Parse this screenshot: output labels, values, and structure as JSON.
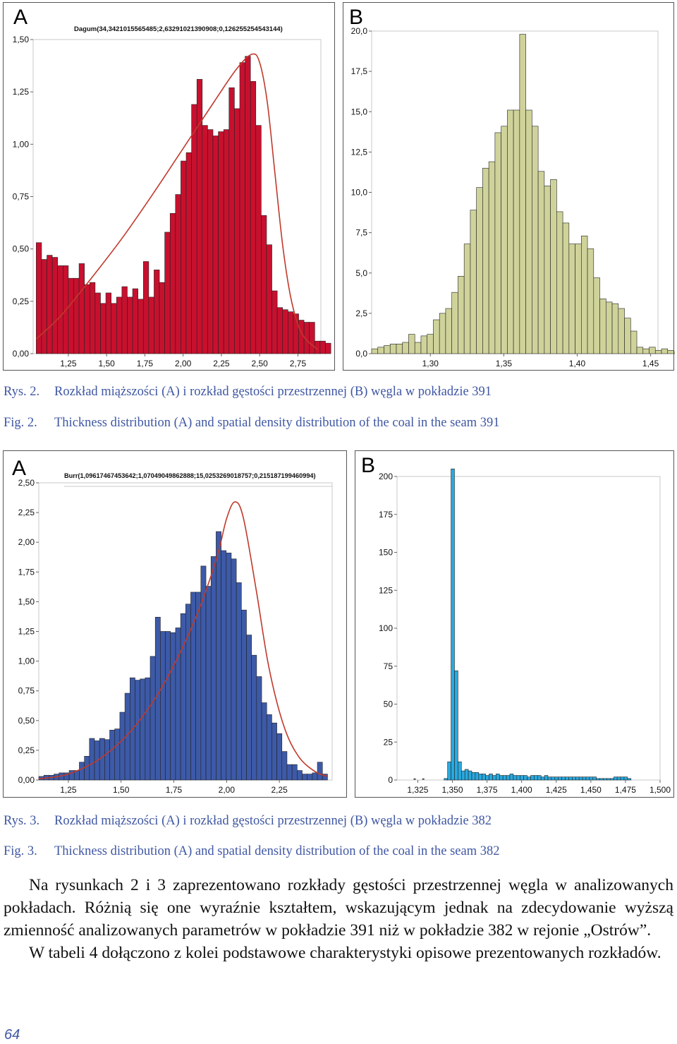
{
  "figures": [
    {
      "caption_pl_label": "Rys. 2.",
      "caption_pl_text": "Rozkład miąższości (A) i rozkład gęstości przestrzennej (B) węgla w pokładzie 391",
      "caption_en_label": "Fig. 2.",
      "caption_en_text": "Thickness distribution (A) and spatial density distribution of the coal in the seam 391"
    },
    {
      "caption_pl_label": "Rys. 3.",
      "caption_pl_text": "Rozkład miąższości (A) i rozkład gęstości przestrzennej (B) węgla w pokładzie 382",
      "caption_en_label": "Fig. 3.",
      "caption_en_text": "Thickness distribution (A) and spatial density distribution of the coal in the seam 382"
    }
  ],
  "body": {
    "paragraph1": "Na rysunkach 2 i 3 zaprezentowano rozkłady gęstości przestrzennej węgla w analizowanych pokładach. Różnią się one wyraźnie kształtem, wskazującym jednak na zdecydowanie wyższą zmienność analizowanych parametrów w pokładzie 391 niż w pokładzie 382 w rejonie „Ostrów”.",
    "paragraph2": "W tabeli 4 dołączono z kolei podstawowe charakterystyki opisowe prezentowanych rozkładów."
  },
  "page_number": "64",
  "chart_data": [
    {
      "id": "fig2A",
      "type": "bar",
      "panel_label": "A",
      "fit_label": "Dagum(34,3421015565485;2,63291021390908;0,126255254543144)",
      "bar_color": "#c8102e",
      "curve_color": "#c0392b",
      "x_range": [
        1.02,
        2.9
      ],
      "ylim": [
        0,
        1.5
      ],
      "x_ticks": [
        {
          "v": 1.25,
          "l": "1,25"
        },
        {
          "v": 1.5,
          "l": "1,50"
        },
        {
          "v": 1.75,
          "l": "1,75"
        },
        {
          "v": 2.0,
          "l": "2,00"
        },
        {
          "v": 2.25,
          "l": "2,25"
        },
        {
          "v": 2.5,
          "l": "2,50"
        },
        {
          "v": 2.75,
          "l": "2,75"
        }
      ],
      "y_ticks": [
        {
          "v": 0,
          "l": "0,00"
        },
        {
          "v": 0.25,
          "l": "0,25"
        },
        {
          "v": 0.5,
          "l": "0,50"
        },
        {
          "v": 0.75,
          "l": "0,75"
        },
        {
          "v": 1.0,
          "l": "1,00"
        },
        {
          "v": 1.25,
          "l": "1,25"
        },
        {
          "v": 1.5,
          "l": "1,50"
        }
      ],
      "bin_start": 1.04,
      "bin_width": 0.035,
      "values": [
        0.53,
        0.45,
        0.47,
        0.46,
        0.42,
        0.42,
        0.36,
        0.36,
        0.43,
        0.33,
        0.34,
        0.29,
        0.24,
        0.29,
        0.24,
        0.27,
        0.32,
        0.27,
        0.31,
        0.26,
        0.44,
        0.27,
        0.4,
        0.34,
        0.58,
        0.67,
        0.76,
        0.92,
        0.96,
        1.19,
        1.31,
        1.09,
        1.07,
        1.04,
        1.06,
        1.07,
        1.27,
        1.17,
        1.39,
        1.42,
        1.3,
        1.09,
        0.66,
        0.52,
        0.3,
        0.22,
        0.21,
        0.2,
        0.19,
        0.16,
        0.15,
        0.15,
        0.06,
        0.06,
        0.05
      ],
      "curve": [
        [
          1.04,
          0.07
        ],
        [
          1.2,
          0.18
        ],
        [
          1.4,
          0.36
        ],
        [
          1.6,
          0.55
        ],
        [
          1.8,
          0.76
        ],
        [
          2.0,
          0.98
        ],
        [
          2.2,
          1.2
        ],
        [
          2.35,
          1.36
        ],
        [
          2.45,
          1.43
        ],
        [
          2.5,
          1.39
        ],
        [
          2.55,
          1.2
        ],
        [
          2.6,
          0.86
        ],
        [
          2.65,
          0.52
        ],
        [
          2.7,
          0.28
        ],
        [
          2.75,
          0.14
        ],
        [
          2.8,
          0.07
        ],
        [
          2.88,
          0.02
        ]
      ]
    },
    {
      "id": "fig2B",
      "type": "bar",
      "panel_label": "B",
      "bar_color": "#cfd39a",
      "curve_color": "",
      "x_range": [
        1.26,
        1.455
      ],
      "ylim": [
        0,
        20
      ],
      "x_ticks": [
        {
          "v": 1.3,
          "l": "1,30"
        },
        {
          "v": 1.35,
          "l": "1,35"
        },
        {
          "v": 1.4,
          "l": "1,40"
        },
        {
          "v": 1.45,
          "l": "1,45"
        }
      ],
      "y_ticks": [
        {
          "v": 0,
          "l": "0,0"
        },
        {
          "v": 2.5,
          "l": "2,5"
        },
        {
          "v": 5.0,
          "l": "5,0"
        },
        {
          "v": 7.5,
          "l": "7,5"
        },
        {
          "v": 10.0,
          "l": "10,0"
        },
        {
          "v": 12.5,
          "l": "12,5"
        },
        {
          "v": 15.0,
          "l": "15,0"
        },
        {
          "v": 17.5,
          "l": "17,5"
        },
        {
          "v": 20.0,
          "l": "20,0"
        }
      ],
      "bin_start": 1.26,
      "bin_width": 0.0042,
      "values": [
        0.3,
        0.4,
        0.5,
        0.6,
        0.6,
        0.7,
        1.2,
        0.7,
        1.1,
        1.2,
        2.1,
        2.5,
        2.8,
        3.8,
        4.8,
        6.8,
        8.9,
        10.3,
        11.5,
        11.9,
        13.7,
        14.1,
        15.1,
        15.1,
        19.8,
        15.1,
        14.1,
        11.3,
        10.4,
        10.8,
        8.8,
        8.1,
        6.8,
        6.8,
        7.3,
        6.5,
        4.7,
        3.4,
        3.2,
        3.1,
        2.8,
        2.2,
        1.4,
        0.4,
        0.3,
        0.4,
        0.2,
        0.3,
        0.2,
        0.1,
        0.1,
        0.2,
        0.2
      ],
      "curve": []
    },
    {
      "id": "fig3A",
      "type": "bar",
      "panel_label": "A",
      "fit_label": "Burr(1,09617467453642;1,07049049862888;15,0253269018757;0,215187199460994)",
      "bar_color": "#3d5aa8",
      "curve_color": "#c0392b",
      "x_range": [
        1.11,
        2.5
      ],
      "ylim": [
        0,
        2.5
      ],
      "x_ticks": [
        {
          "v": 1.25,
          "l": "1,25"
        },
        {
          "v": 1.5,
          "l": "1,50"
        },
        {
          "v": 1.75,
          "l": "1,75"
        },
        {
          "v": 2.0,
          "l": "2,00"
        },
        {
          "v": 2.25,
          "l": "2,25"
        }
      ],
      "y_ticks": [
        {
          "v": 0,
          "l": "0,00"
        },
        {
          "v": 0.25,
          "l": "0,25"
        },
        {
          "v": 0.5,
          "l": "0,50"
        },
        {
          "v": 0.75,
          "l": "0,75"
        },
        {
          "v": 1.0,
          "l": "1,00"
        },
        {
          "v": 1.25,
          "l": "1,25"
        },
        {
          "v": 1.5,
          "l": "1,50"
        },
        {
          "v": 1.75,
          "l": "1,75"
        },
        {
          "v": 2.0,
          "l": "2,00"
        },
        {
          "v": 2.25,
          "l": "2,25"
        },
        {
          "v": 2.5,
          "l": "2,50"
        }
      ],
      "bin_start": 1.11,
      "bin_width": 0.024,
      "values": [
        0.03,
        0.04,
        0.04,
        0.05,
        0.06,
        0.06,
        0.08,
        0.08,
        0.15,
        0.2,
        0.35,
        0.33,
        0.35,
        0.34,
        0.42,
        0.43,
        0.57,
        0.73,
        0.86,
        0.84,
        0.85,
        0.86,
        1.04,
        1.37,
        1.25,
        1.25,
        1.24,
        1.28,
        1.4,
        1.48,
        1.58,
        1.58,
        1.8,
        1.63,
        1.88,
        2.09,
        1.93,
        1.91,
        1.86,
        1.66,
        1.43,
        1.22,
        1.05,
        0.87,
        0.65,
        0.55,
        0.48,
        0.39,
        0.24,
        0.13,
        0.13,
        0.08,
        0.05,
        0.05,
        0.06,
        0.15,
        0.05
      ],
      "curve": [
        [
          1.11,
          0.01
        ],
        [
          1.25,
          0.05
        ],
        [
          1.4,
          0.18
        ],
        [
          1.55,
          0.42
        ],
        [
          1.7,
          0.8
        ],
        [
          1.85,
          1.35
        ],
        [
          1.95,
          1.85
        ],
        [
          2.0,
          2.2
        ],
        [
          2.04,
          2.34
        ],
        [
          2.08,
          2.2
        ],
        [
          2.14,
          1.6
        ],
        [
          2.2,
          0.95
        ],
        [
          2.27,
          0.46
        ],
        [
          2.34,
          0.2
        ],
        [
          2.42,
          0.07
        ],
        [
          2.48,
          0.03
        ]
      ]
    },
    {
      "id": "fig3B",
      "type": "bar",
      "panel_label": "B",
      "bar_color": "#29a9df",
      "curve_color": "",
      "x_range": [
        1.31,
        1.5
      ],
      "ylim": [
        0,
        200
      ],
      "x_ticks": [
        {
          "v": 1.325,
          "l": "1,325"
        },
        {
          "v": 1.35,
          "l": "1,350"
        },
        {
          "v": 1.375,
          "l": "1,375"
        },
        {
          "v": 1.4,
          "l": "1,400"
        },
        {
          "v": 1.425,
          "l": "1,425"
        },
        {
          "v": 1.45,
          "l": "1,450"
        },
        {
          "v": 1.475,
          "l": "1,475"
        },
        {
          "v": 1.5,
          "l": "1,500"
        }
      ],
      "y_ticks": [
        {
          "v": 0,
          "l": "0"
        },
        {
          "v": 25,
          "l": "25"
        },
        {
          "v": 50,
          "l": "50"
        },
        {
          "v": 75,
          "l": "75"
        },
        {
          "v": 100,
          "l": "100"
        },
        {
          "v": 125,
          "l": "125"
        },
        {
          "v": 150,
          "l": "150"
        },
        {
          "v": 175,
          "l": "175"
        },
        {
          "v": 200,
          "l": "200"
        }
      ],
      "bin_start": 1.344,
      "bin_width": 0.0025,
      "values": [
        1,
        12,
        205,
        72,
        12,
        6,
        7,
        6,
        5,
        5,
        4,
        4,
        3,
        4,
        3,
        4,
        3,
        3,
        3,
        4,
        3,
        3,
        3,
        3,
        2,
        3,
        3,
        3,
        2,
        3,
        2,
        2,
        2,
        2,
        2,
        2,
        2,
        2,
        2,
        2,
        2,
        2,
        2,
        2,
        1,
        1,
        1,
        1,
        1,
        2,
        2,
        2,
        2,
        1
      ],
      "extra_points": [
        [
          1.322,
          0.5
        ],
        [
          1.3282,
          0.5
        ]
      ],
      "curve": []
    }
  ]
}
